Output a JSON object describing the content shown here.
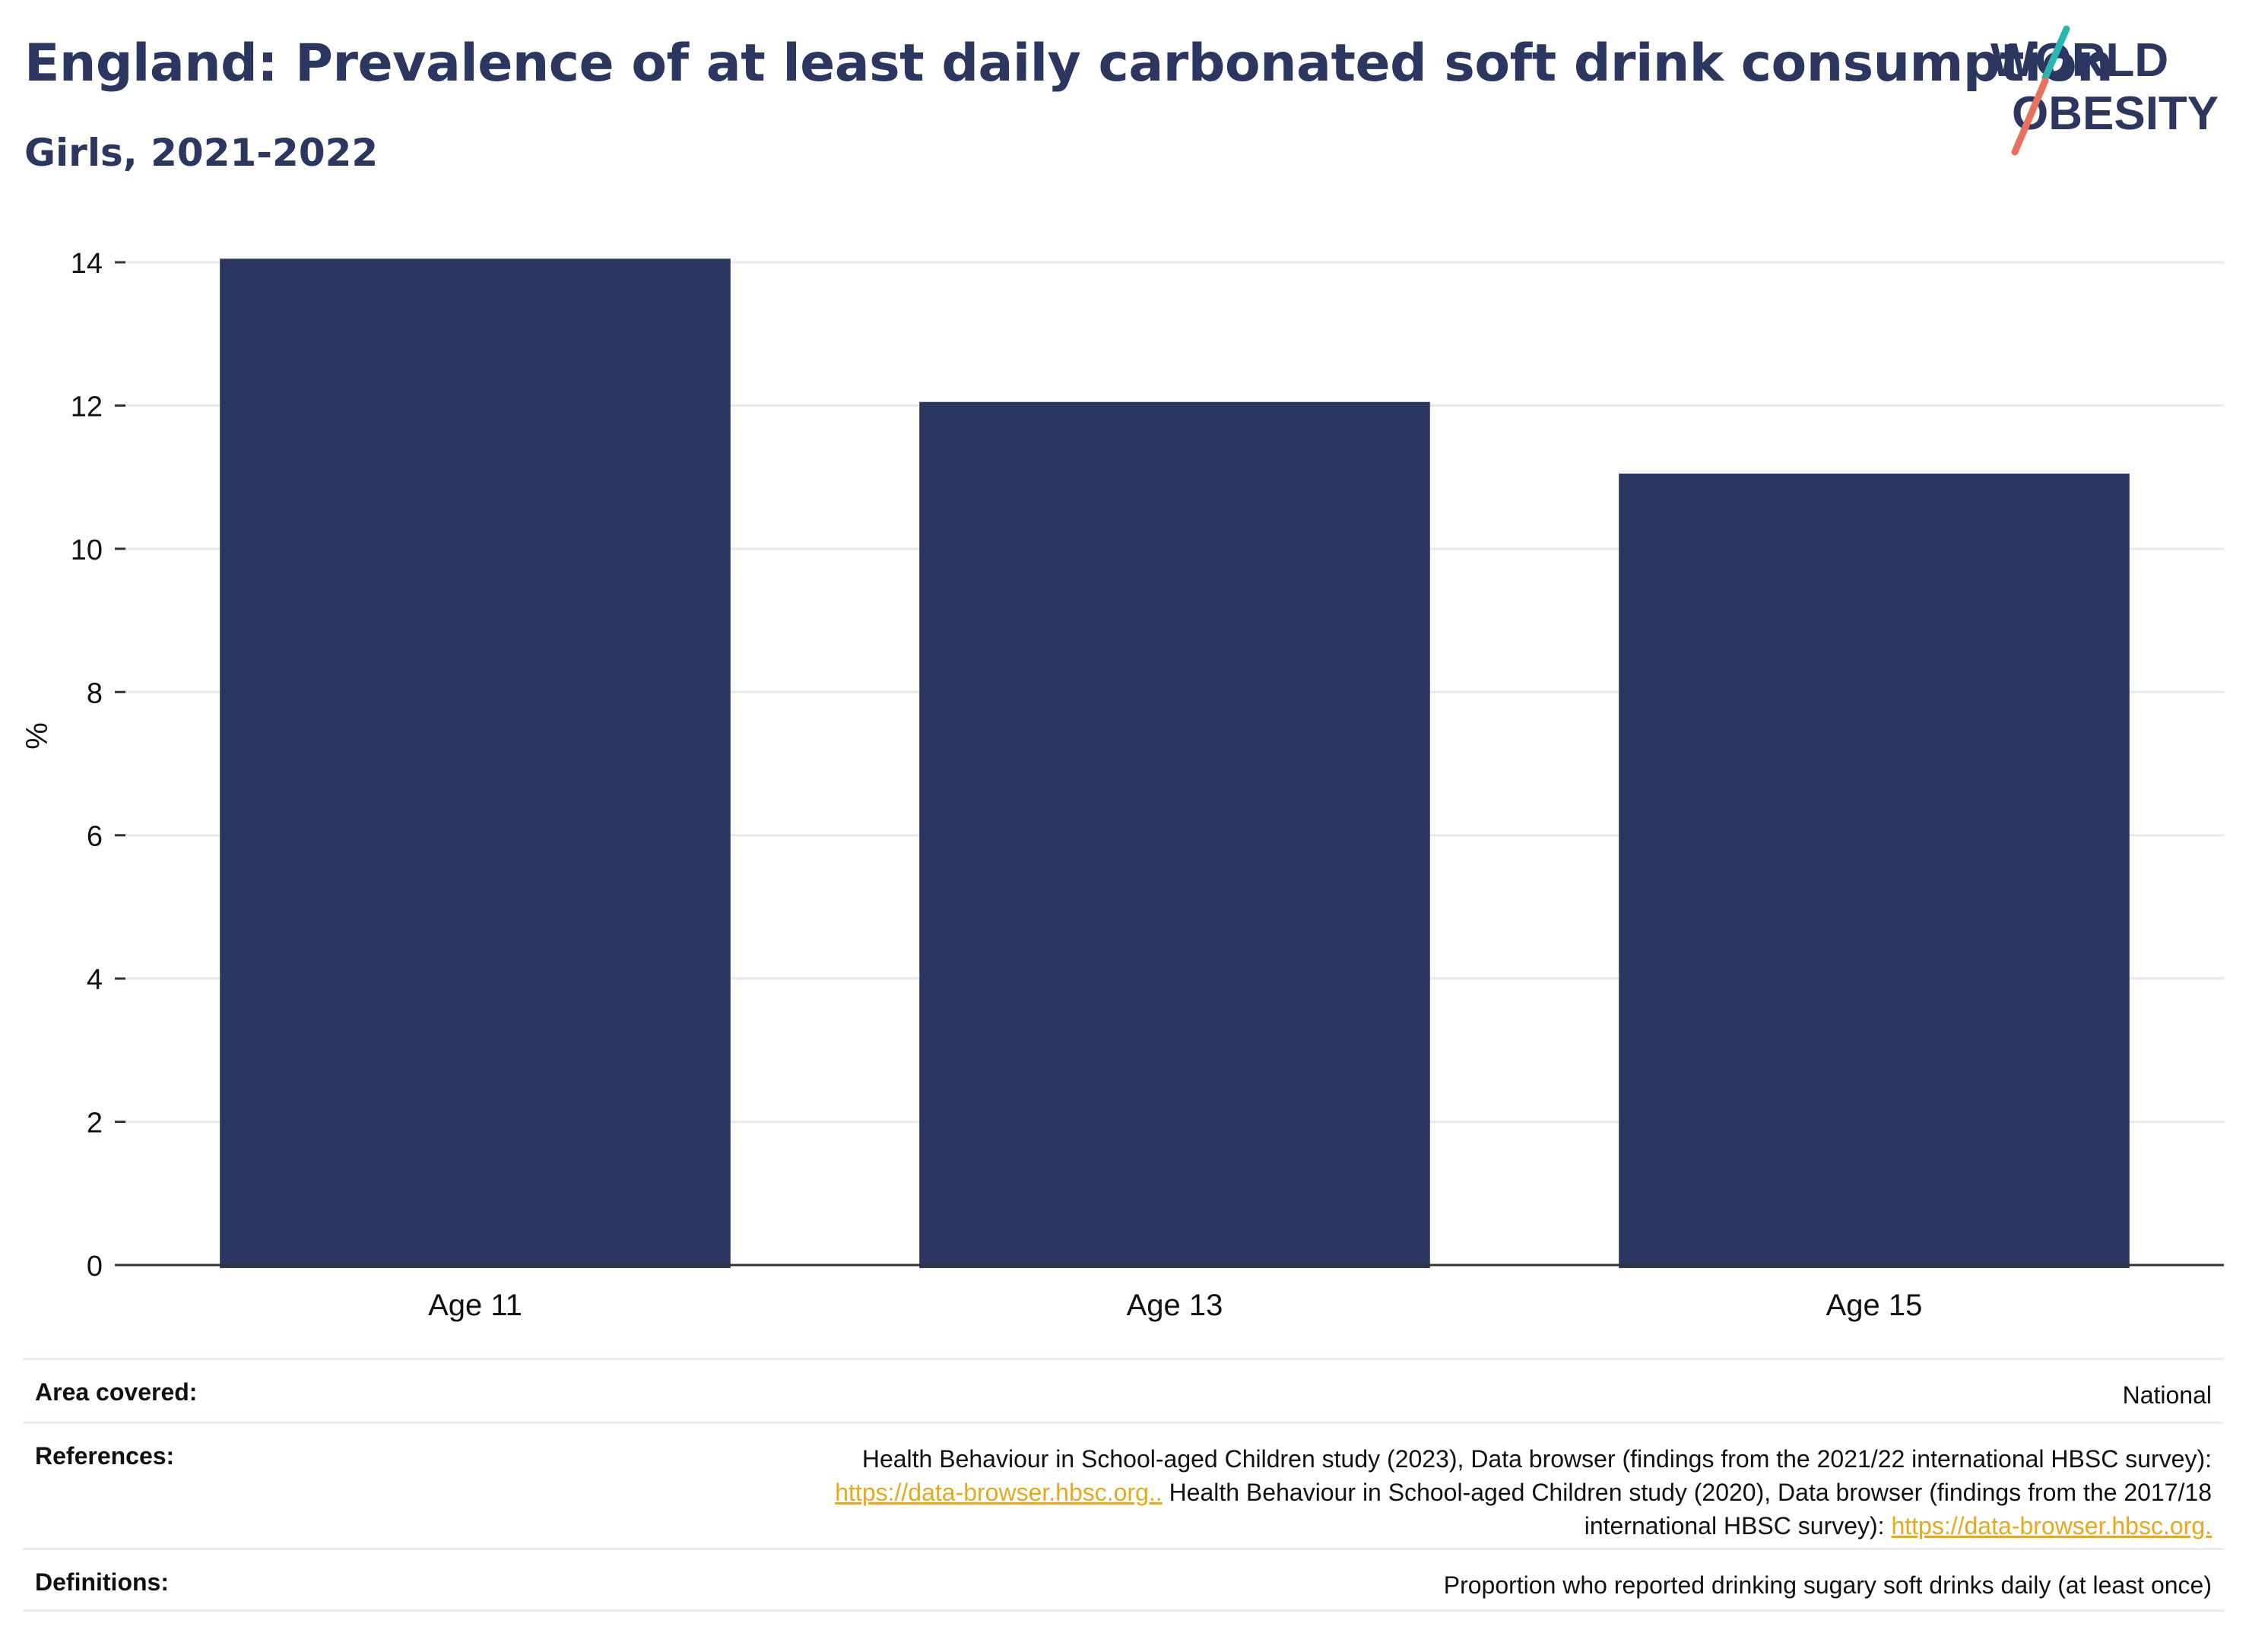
{
  "header": {
    "title": "England: Prevalence of at least daily carbonated soft drink consumption",
    "subtitle": "Girls, 2021-2022"
  },
  "logo": {
    "line1": "WORLD",
    "line2": "OBESITY",
    "colors": {
      "text": "#2b3661",
      "slash_top": "#2bb5b0",
      "slash_bottom": "#e8715e"
    }
  },
  "chart_data": {
    "type": "bar",
    "categories": [
      "Age 11",
      "Age 13",
      "Age 15"
    ],
    "values": [
      14.05,
      12.05,
      11.05
    ],
    "ylabel": "%",
    "xlabel": "",
    "ylim": [
      0,
      14
    ],
    "yticks": [
      0,
      2,
      4,
      6,
      8,
      10,
      12,
      14
    ],
    "grid": true,
    "bar_color": "#2b3661"
  },
  "meta": {
    "area": {
      "label": "Area covered:",
      "value": "National"
    },
    "references": {
      "label": "References:",
      "text1": "Health Behaviour in School-aged Children study (2023), Data browser (findings from the 2021/22 international HBSC survey):",
      "link1": "https://data-browser.hbsc.org..",
      "text2": " Health Behaviour in School-aged Children study (2020), Data browser (findings from the 2017/18",
      "text3": "international HBSC survey): ",
      "link2": "https://data-browser.hbsc.org."
    },
    "definitions": {
      "label": "Definitions:",
      "value": "Proportion who reported drinking sugary soft drinks daily (at least once)"
    }
  }
}
